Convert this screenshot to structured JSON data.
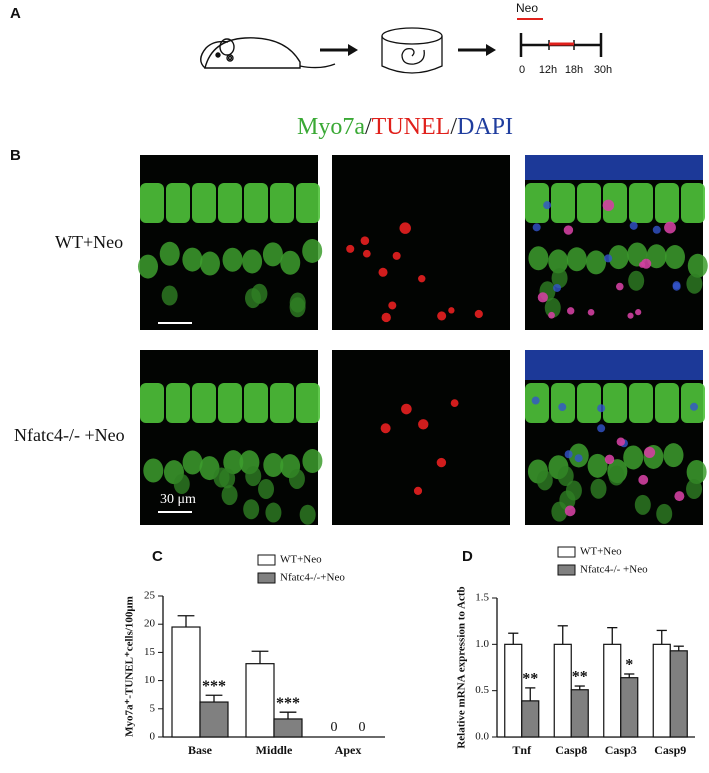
{
  "panel_a": {
    "label": "A",
    "timeline": {
      "drug": "Neo",
      "ticks": [
        "0",
        "12h",
        "18h",
        "30h"
      ]
    }
  },
  "panel_b": {
    "label": "B",
    "title_parts": [
      "Myo7a",
      "/",
      "TUNEL",
      "/",
      "DAPI"
    ],
    "title_colors": [
      "#3aa935",
      "#222222",
      "#e0201b",
      "#222222",
      "#1f3d9e"
    ],
    "rows": [
      "WT+Neo",
      "Nfatc4-/- +Neo"
    ],
    "scale_bar": "30 μm"
  },
  "chart_data": [
    {
      "type": "bar",
      "label": "C",
      "y_label": "Myo7a⁺-TUNEL⁺cells/100μm",
      "categories": [
        "Base",
        "Middle",
        "Apex"
      ],
      "series": [
        {
          "name": "WT+Neo",
          "color": "#ffffff",
          "values": [
            19.5,
            13,
            0
          ],
          "errors": [
            2,
            2.2,
            0
          ],
          "annotations": [
            null,
            null,
            null
          ]
        },
        {
          "name": "Nfatc4-/-+Neo",
          "color": "#808080",
          "values": [
            6.2,
            3.2,
            0
          ],
          "errors": [
            1.2,
            1.2,
            0
          ],
          "annotations": [
            "***",
            "***",
            null
          ]
        }
      ],
      "ylim": [
        0,
        25
      ],
      "yticks": [
        0,
        5,
        10,
        15,
        20,
        25
      ]
    },
    {
      "type": "bar",
      "label": "D",
      "y_label": "Relative mRNA expression to Actb",
      "categories": [
        "Tnf",
        "Casp8",
        "Casp3",
        "Casp9"
      ],
      "series": [
        {
          "name": "WT+Neo",
          "color": "#ffffff",
          "values": [
            1.0,
            1.0,
            1.0,
            1.0
          ],
          "errors": [
            0.12,
            0.2,
            0.18,
            0.15
          ],
          "annotations": [
            null,
            null,
            null,
            null
          ]
        },
        {
          "name": "Nfatc4-/- +Neo",
          "color": "#808080",
          "values": [
            0.39,
            0.51,
            0.64,
            0.93
          ],
          "errors": [
            0.14,
            0.04,
            0.04,
            0.05
          ],
          "annotations": [
            "**",
            "**",
            "*",
            null
          ]
        }
      ],
      "ylim": [
        0,
        1.5
      ],
      "yticks": [
        {
          "value": 0,
          "label": "0.0"
        },
        0.5,
        {
          "value": 1,
          "label": "1.0"
        },
        1.5
      ]
    }
  ]
}
